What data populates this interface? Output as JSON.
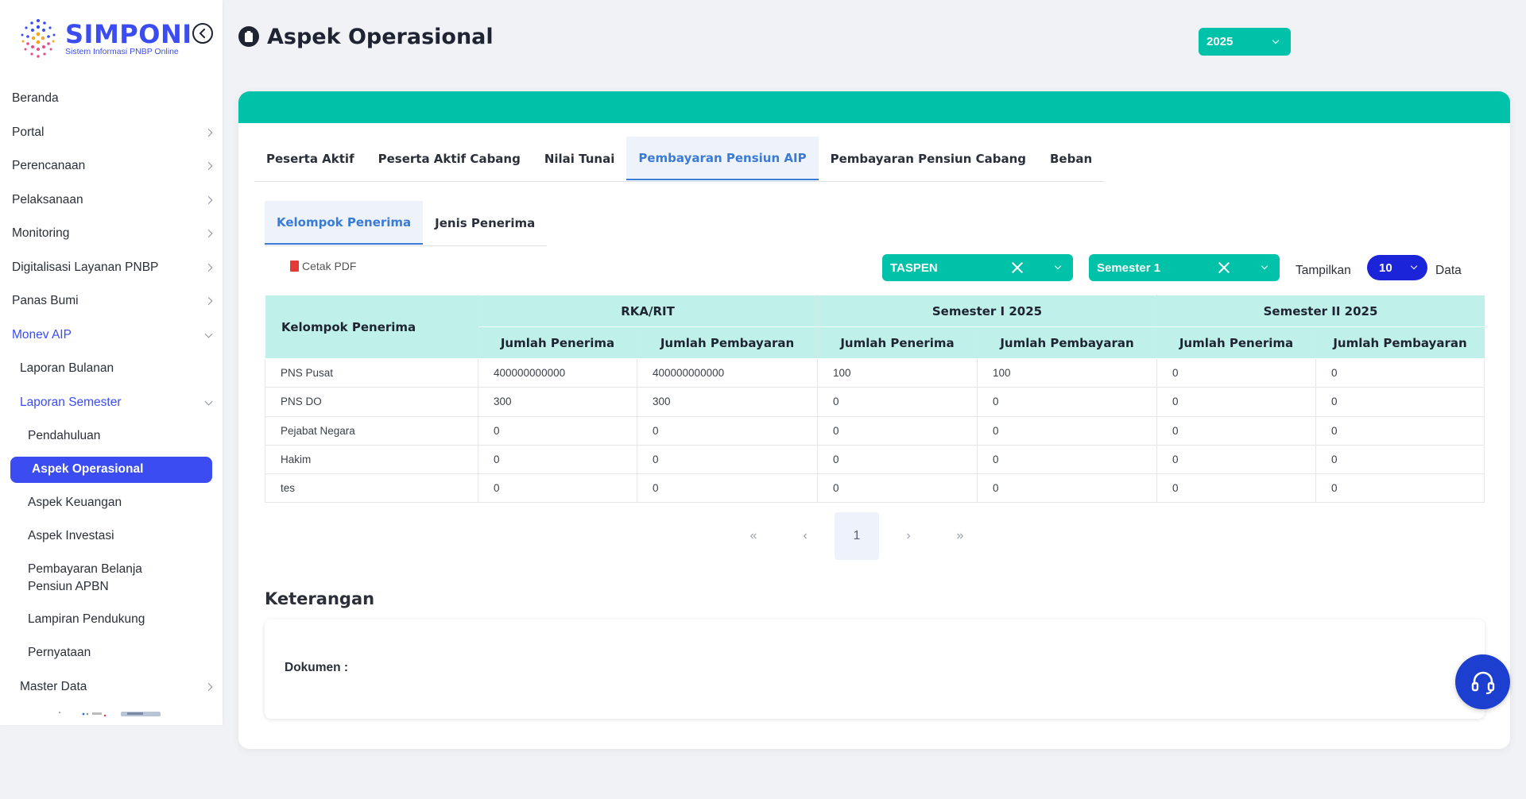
{
  "logo": {
    "name": "SIMPONI",
    "subtitle": "Sistem Informasi PNBP Online"
  },
  "sidebar": {
    "items": [
      {
        "label": "Beranda"
      },
      {
        "label": "Portal"
      },
      {
        "label": "Perencanaan"
      },
      {
        "label": "Pelaksanaan"
      },
      {
        "label": "Monitoring"
      },
      {
        "label": "Digitalisasi Layanan PNBP"
      },
      {
        "label": "Panas Bumi"
      },
      {
        "label": "Monev AIP"
      },
      {
        "label": "Laporan Bulanan"
      },
      {
        "label": "Laporan Semester"
      },
      {
        "label": "Pendahuluan"
      },
      {
        "label": "Aspek Operasional"
      },
      {
        "label": "Aspek Keuangan"
      },
      {
        "label": "Aspek Investasi"
      },
      {
        "label": "Pembayaran Belanja Pensiun APBN"
      },
      {
        "label": "Lampiran Pendukung"
      },
      {
        "label": "Pernyataan"
      },
      {
        "label": "Master Data"
      }
    ]
  },
  "header": {
    "title": "Aspek Operasional",
    "year": "2025"
  },
  "tabs": [
    {
      "label": "Peserta Aktif"
    },
    {
      "label": "Peserta Aktif Cabang"
    },
    {
      "label": "Nilai Tunai"
    },
    {
      "label": "Pembayaran Pensiun AIP"
    },
    {
      "label": "Pembayaran Pensiun Cabang"
    },
    {
      "label": "Beban"
    }
  ],
  "subtabs": [
    {
      "label": "Kelompok Penerima"
    },
    {
      "label": "Jenis Penerima"
    }
  ],
  "toolbar": {
    "print_pdf": "Cetak PDF",
    "filter_org": "TASPEN",
    "filter_semester": "Semester 1",
    "show_label": "Tampilkan",
    "show_value": "10",
    "data_label": "Data"
  },
  "table": {
    "row_header": "Kelompok Penerima",
    "groups": [
      "RKA/RIT",
      "Semester I 2025",
      "Semester II 2025"
    ],
    "subcols": [
      "Jumlah Penerima",
      "Jumlah Pembayaran",
      "Jumlah Penerima",
      "Jumlah Pembayaran",
      "Jumlah Penerima",
      "Jumlah Pembayaran"
    ],
    "rows": [
      [
        "PNS Pusat",
        "400000000000",
        "400000000000",
        "100",
        "100",
        "0",
        "0"
      ],
      [
        "PNS DO",
        "300",
        "300",
        "0",
        "0",
        "0",
        "0"
      ],
      [
        "Pejabat Negara",
        "0",
        "0",
        "0",
        "0",
        "0",
        "0"
      ],
      [
        "Hakim",
        "0",
        "0",
        "0",
        "0",
        "0",
        "0"
      ],
      [
        "tes",
        "0",
        "0",
        "0",
        "0",
        "0",
        "0"
      ]
    ]
  },
  "pagination": {
    "first": "«",
    "prev": "‹",
    "current": "1",
    "next": "›",
    "last": "»"
  },
  "keterangan": {
    "title": "Keterangan",
    "document_label": "Dokumen :"
  },
  "colors": {
    "accent": "#00c2a8",
    "primary": "#3b4cf0",
    "tab_active": "#3a7bd5",
    "table_header": "#bff0ea"
  }
}
